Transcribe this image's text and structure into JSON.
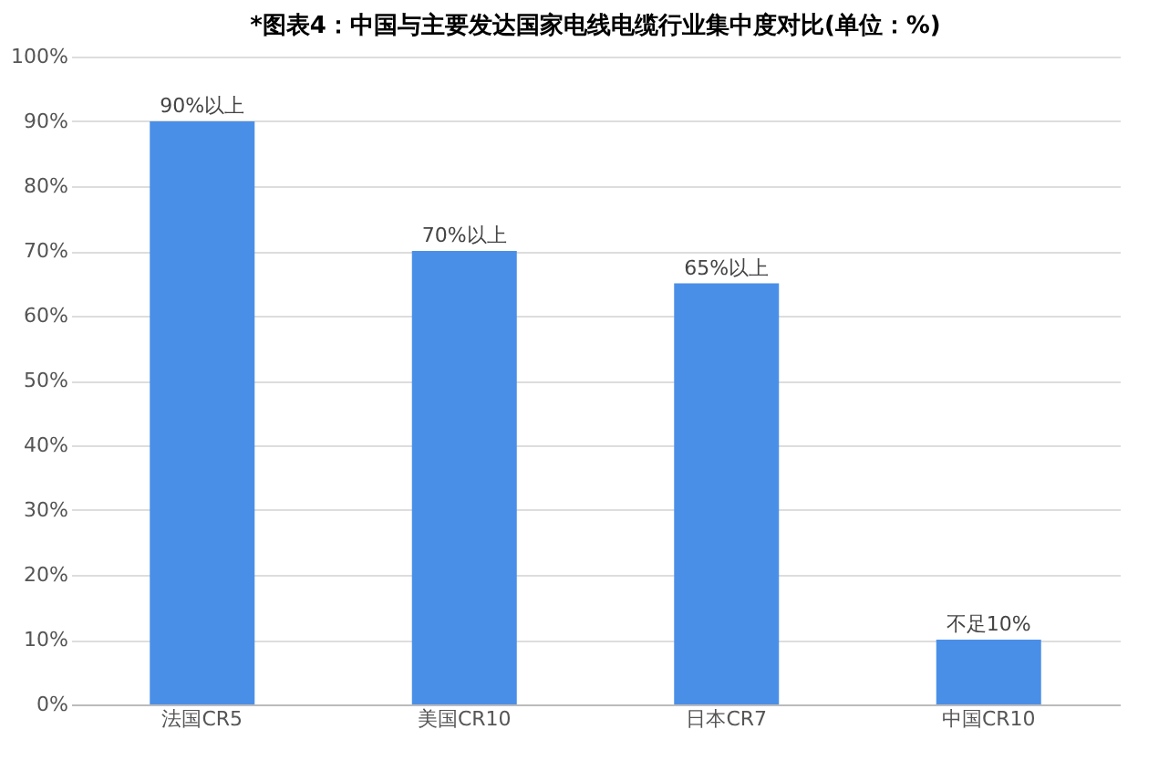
{
  "chart_data": {
    "type": "bar",
    "title": "*图表4：中国与主要发达国家电线电缆行业集中度对比(单位：%)",
    "categories": [
      "法国CR5",
      "美国CR10",
      "日本CR7",
      "中国CR10"
    ],
    "values": [
      90,
      70,
      65,
      10
    ],
    "value_labels": [
      "90%以上",
      "70%以上",
      "65%以上",
      "不足10%"
    ],
    "color": "#4a8fe7",
    "ylim": [
      0,
      100
    ],
    "yticks": [
      {
        "value": 0,
        "label": "0%"
      },
      {
        "value": 10,
        "label": "10%"
      },
      {
        "value": 20,
        "label": "20%"
      },
      {
        "value": 30,
        "label": "30%"
      },
      {
        "value": 40,
        "label": "40%"
      },
      {
        "value": 50,
        "label": "50%"
      },
      {
        "value": 60,
        "label": "60%"
      },
      {
        "value": 70,
        "label": "70%"
      },
      {
        "value": 80,
        "label": "80%"
      },
      {
        "value": 90,
        "label": "90%"
      },
      {
        "value": 100,
        "label": "100%"
      }
    ],
    "grid": "y"
  }
}
